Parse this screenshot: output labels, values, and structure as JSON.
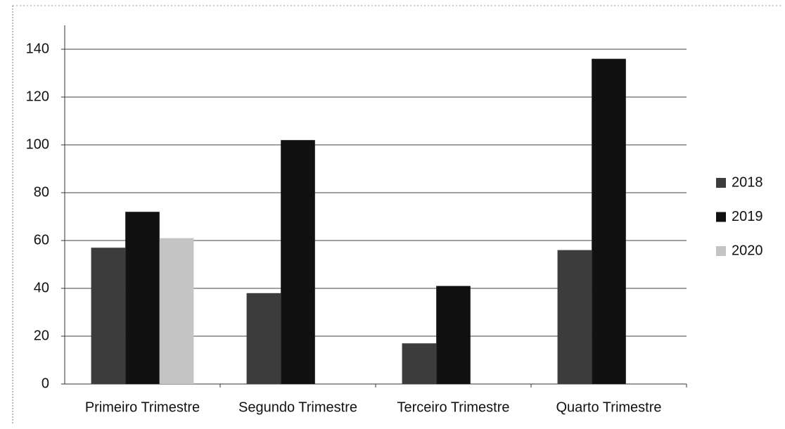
{
  "chart_data": {
    "type": "bar",
    "categories": [
      "Primeiro Trimestre",
      "Segundo Trimestre",
      "Terceiro Trimestre",
      "Quarto Trimestre"
    ],
    "series": [
      {
        "name": "2018",
        "color": "#3c3c3c",
        "values": [
          57,
          38,
          17,
          56
        ]
      },
      {
        "name": "2019",
        "color": "#111111",
        "values": [
          72,
          102,
          41,
          136
        ]
      },
      {
        "name": "2020",
        "color": "#c4c4c4",
        "values": [
          61,
          null,
          null,
          null
        ]
      }
    ],
    "ylim": [
      0,
      150
    ],
    "yticks": [
      0,
      20,
      40,
      60,
      80,
      100,
      120,
      140
    ],
    "grid": true,
    "legend": "right"
  }
}
